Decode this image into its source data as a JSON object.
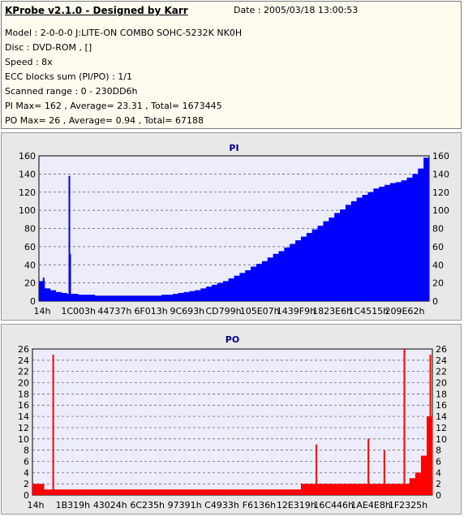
{
  "header": {
    "title": "KProbe v2.1.0 - Designed by Karr",
    "date": "Date : 2005/03/18 13:00:53",
    "lines": [
      "Model : 2-0-0-0 J:LITE-ON COMBO SOHC-5232K NK0H",
      "Disc : DVD-ROM ,  []",
      "Speed : 8x",
      "ECC blocks sum (PI/PO) : 1/1",
      "Scanned range : 0 - 230DD6h",
      "PI Max= 162 , Average= 23.31 , Total= 1673445",
      "PO Max= 26 , Average= 0.94 , Total= 67188"
    ]
  },
  "chart_data": [
    {
      "type": "bar",
      "title": "PI",
      "color": "#0000ff",
      "ylim": [
        0,
        160
      ],
      "yticks": [
        0,
        20,
        40,
        60,
        80,
        100,
        120,
        140,
        160
      ],
      "xtick_labels": [
        "14h",
        "1C003h",
        "44737h",
        "6F013h",
        "9C693h",
        "CD799h",
        "105E07h",
        "1439F9h",
        "1823E6h",
        "1C4515h",
        "209E62h"
      ],
      "grid": "dashed",
      "series": [
        {
          "values": [
            22,
            14,
            12,
            10,
            9,
            8,
            8,
            7,
            7,
            7,
            6,
            6,
            6,
            6,
            6,
            6,
            6,
            6,
            6,
            6,
            6,
            6,
            7,
            7,
            8,
            9,
            10,
            11,
            12,
            14,
            16,
            18,
            20,
            22,
            25,
            28,
            31,
            34,
            38,
            41,
            44,
            48,
            52,
            55,
            59,
            63,
            67,
            71,
            75,
            79,
            83,
            88,
            92,
            97,
            101,
            106,
            110,
            114,
            117,
            120,
            124,
            126,
            128,
            130,
            131,
            133,
            136,
            140,
            146,
            158
          ]
        }
      ],
      "spikes": [
        {
          "at": 0.078,
          "value": 138
        },
        {
          "at": 0.08,
          "value": 52
        },
        {
          "at": 0.012,
          "value": 26
        }
      ]
    },
    {
      "type": "bar",
      "title": "PO",
      "color": "#ff0000",
      "ylim": [
        0,
        26
      ],
      "yticks": [
        0,
        2,
        4,
        6,
        8,
        10,
        12,
        14,
        16,
        18,
        20,
        22,
        24,
        26
      ],
      "xtick_labels": [
        "14h",
        "1B319h",
        "43024h",
        "6C235h",
        "97391h",
        "C4933h",
        "F6136h",
        "12E319h",
        "16C446h",
        "1AE4E8h",
        "1F2325h"
      ],
      "grid": "dashed",
      "series": [
        {
          "values": [
            2,
            2,
            1,
            1,
            1,
            1,
            1,
            1,
            1,
            1,
            1,
            1,
            1,
            1,
            1,
            1,
            1,
            1,
            1,
            1,
            1,
            1,
            1,
            1,
            1,
            1,
            1,
            1,
            1,
            1,
            1,
            1,
            1,
            1,
            1,
            1,
            1,
            1,
            1,
            1,
            1,
            1,
            1,
            1,
            1,
            1,
            1,
            2,
            2,
            2,
            2,
            2,
            2,
            2,
            2,
            2,
            2,
            2,
            2,
            2,
            2,
            2,
            2,
            2,
            2,
            2,
            3,
            4,
            7,
            14
          ]
        }
      ],
      "spikes": [
        {
          "at": 0.052,
          "value": 25
        },
        {
          "at": 0.71,
          "value": 9
        },
        {
          "at": 0.84,
          "value": 10
        },
        {
          "at": 0.88,
          "value": 8
        },
        {
          "at": 0.93,
          "value": 26
        },
        {
          "at": 0.995,
          "value": 25
        }
      ]
    }
  ]
}
